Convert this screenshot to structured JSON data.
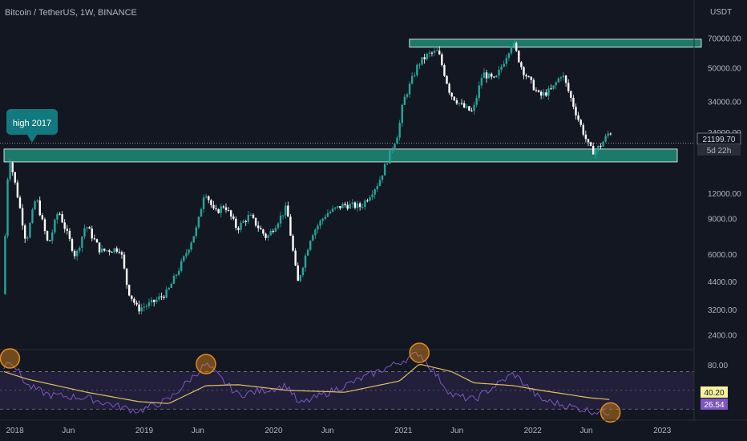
{
  "header": {
    "symbol_title": "Bitcoin / TetherUS, 1W, BINANCE"
  },
  "price_axis": {
    "unit": "USDT",
    "tick_labels": [
      "70000.00",
      "50000.00",
      "34000.00",
      "24000.00",
      "12000.00",
      "9000.00",
      "6000.00",
      "4400.00",
      "3200.00",
      "2400.00"
    ],
    "last_price": "21199.70",
    "countdown": "5d 22h"
  },
  "rsi_axis": {
    "tick_labels": [
      "80.00"
    ],
    "ma_value": "40.20",
    "rsi_value": "26.54"
  },
  "time_axis": {
    "labels": [
      "2018",
      "Jun",
      "2019",
      "Jun",
      "2020",
      "Jun",
      "2021",
      "Jun",
      "2022",
      "Jun",
      "2023"
    ]
  },
  "annotation": {
    "callout_text": "high 2017"
  },
  "colors": {
    "background": "#131722",
    "up": "#26a69a",
    "down": "#ffffff",
    "zone_fill": "#1e8c78",
    "zone_border": "#ffffff",
    "callout": "#127a7f",
    "rsi_line": "#7e57c2",
    "rsi_ma": "#e0c060",
    "rsi_band": "#2a2448",
    "circle": "#e08a1c"
  },
  "chart_data": [
    {
      "type": "candlestick",
      "scale": "log",
      "ylim": [
        2100,
        82000
      ],
      "series": [
        {
          "name": "",
          "points": [
            [
              "2017-12-01",
              3800
            ],
            [
              "2017-12-18",
              19000
            ],
            [
              "2018-01-15",
              11000
            ],
            [
              "2018-02-05",
              6900
            ],
            [
              "2018-03-05",
              11500
            ],
            [
              "2018-04-09",
              6600
            ],
            [
              "2018-05-07",
              9900
            ],
            [
              "2018-06-25",
              5800
            ],
            [
              "2018-07-23",
              8400
            ],
            [
              "2018-09-03",
              6200
            ],
            [
              "2018-10-29",
              6400
            ],
            [
              "2018-11-19",
              4000
            ],
            [
              "2018-12-17",
              3200
            ],
            [
              "2019-01-28",
              3450
            ],
            [
              "2019-03-11",
              3900
            ],
            [
              "2019-04-22",
              5500
            ],
            [
              "2019-06-03",
              8200
            ],
            [
              "2019-06-24",
              12500
            ],
            [
              "2019-07-22",
              9500
            ],
            [
              "2019-08-19",
              10500
            ],
            [
              "2019-09-23",
              8000
            ],
            [
              "2019-10-28",
              9300
            ],
            [
              "2019-12-16",
              7200
            ],
            [
              "2020-02-10",
              10200
            ],
            [
              "2020-03-12",
              4300
            ],
            [
              "2020-04-20",
              7500
            ],
            [
              "2020-06-01",
              9500
            ],
            [
              "2020-07-20",
              10500
            ],
            [
              "2020-09-07",
              10300
            ],
            [
              "2020-10-26",
              13500
            ],
            [
              "2020-12-21",
              24000
            ],
            [
              "2021-01-04",
              34000
            ],
            [
              "2021-02-15",
              52000
            ],
            [
              "2021-03-15",
              58000
            ],
            [
              "2021-04-12",
              60000
            ],
            [
              "2021-05-17",
              37000
            ],
            [
              "2021-06-21",
              32000
            ],
            [
              "2021-07-19",
              30000
            ],
            [
              "2021-08-16",
              47000
            ],
            [
              "2021-09-20",
              43000
            ],
            [
              "2021-11-08",
              67000
            ],
            [
              "2021-12-06",
              49000
            ],
            [
              "2022-01-24",
              36000
            ],
            [
              "2022-02-28",
              39000
            ],
            [
              "2022-03-28",
              47000
            ],
            [
              "2022-05-09",
              29000
            ],
            [
              "2022-06-13",
              20000
            ],
            [
              "2022-06-27",
              19200
            ],
            [
              "2022-07-18",
              21000
            ],
            [
              "2022-08-08",
              24000
            ]
          ]
        }
      ],
      "zones": [
        {
          "low": 63000,
          "high": 69000
        },
        {
          "low": 17100,
          "high": 19800
        }
      ],
      "reference_line": 21199.7
    },
    {
      "type": "line",
      "ylim": [
        20,
        90
      ],
      "band": [
        30,
        70
      ],
      "series": [
        {
          "name": "",
          "values": [
            [
              "2017-12-01",
              75
            ],
            [
              "2017-12-18",
              84
            ],
            [
              "2018-02-05",
              55
            ],
            [
              "2018-04-09",
              45
            ],
            [
              "2018-07-23",
              42
            ],
            [
              "2018-11-19",
              30
            ],
            [
              "2018-12-17",
              28
            ],
            [
              "2019-03-11",
              40
            ],
            [
              "2019-06-24",
              78
            ],
            [
              "2019-09-23",
              45
            ],
            [
              "2020-02-10",
              55
            ],
            [
              "2020-03-12",
              35
            ],
            [
              "2020-07-20",
              55
            ],
            [
              "2020-12-21",
              80
            ],
            [
              "2021-02-15",
              90
            ],
            [
              "2021-05-17",
              45
            ],
            [
              "2021-07-19",
              40
            ],
            [
              "2021-11-08",
              68
            ],
            [
              "2022-01-24",
              40
            ],
            [
              "2022-06-13",
              28
            ],
            [
              "2022-08-08",
              26.54
            ]
          ]
        },
        {
          "name": "",
          "values": [
            [
              "2017-12-01",
              70
            ],
            [
              "2018-02-05",
              62
            ],
            [
              "2018-07-23",
              48
            ],
            [
              "2018-12-17",
              38
            ],
            [
              "2019-03-11",
              36
            ],
            [
              "2019-06-24",
              55
            ],
            [
              "2019-09-23",
              56
            ],
            [
              "2020-02-10",
              50
            ],
            [
              "2020-07-20",
              48
            ],
            [
              "2020-12-21",
              60
            ],
            [
              "2021-02-15",
              78
            ],
            [
              "2021-05-17",
              70
            ],
            [
              "2021-07-19",
              58
            ],
            [
              "2021-11-08",
              55
            ],
            [
              "2022-01-24",
              50
            ],
            [
              "2022-06-13",
              42
            ],
            [
              "2022-08-08",
              40.2
            ]
          ]
        }
      ],
      "highlighted_dates": [
        "2017-12-18",
        "2019-06-24",
        "2021-02-15",
        "2022-08-08"
      ]
    }
  ]
}
